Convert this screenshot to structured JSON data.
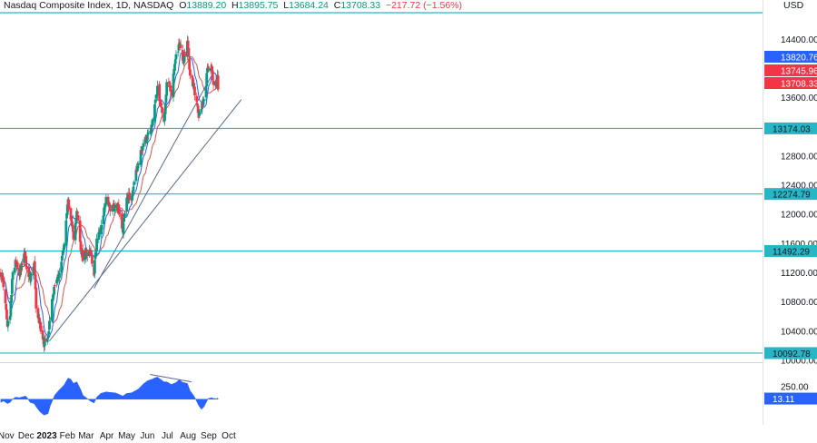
{
  "header": {
    "symbol": "Nasdaq Composite Index, 1D, NASDAQ",
    "open_label": "O",
    "open": "13889.20",
    "high_label": "H",
    "high": "13895.75",
    "low_label": "L",
    "low": "13684.24",
    "close_label": "C",
    "close": "13708.33",
    "change": "−217.72 (−1.56%)"
  },
  "currency": "USD",
  "colors": {
    "up": "#089981",
    "down": "#f23645",
    "ma_fast": "#2962ff",
    "ma_slow": "#e05252",
    "hline": "#26b6c6",
    "trendline": "#5d6a8c",
    "oscillator": "#2962ff"
  },
  "chart_data": {
    "type": "candlestick",
    "y_axis": {
      "ticks": [
        "14400.00",
        "13600.00",
        "12800.00",
        "12400.00",
        "12000.00",
        "11600.00",
        "11200.00",
        "10800.00",
        "10400.00",
        "10000.00"
      ],
      "ylim": [
        9980,
        14860
      ]
    },
    "x_axis": {
      "ticks": [
        "Nov",
        "Dec",
        "2023",
        "Feb",
        "Mar",
        "Apr",
        "May",
        "Jun",
        "Jul",
        "Aug",
        "Sep",
        "Oct"
      ]
    },
    "price_badges": [
      {
        "label": "13820.76",
        "value": 13820.76,
        "color": "#2962ff"
      },
      {
        "label": "13745.96",
        "value": 13745.96,
        "color": "#f23645"
      },
      {
        "label": "13708.33",
        "value": 13708.33,
        "color": "#f23645"
      }
    ],
    "horizontal_levels": [
      {
        "label": "14760.00",
        "value": 14760,
        "badge": false
      },
      {
        "label": "13174.03",
        "value": 13174.03,
        "badge": true
      },
      {
        "label": "12274.79",
        "value": 12274.79,
        "badge": true
      },
      {
        "label": "11492.29",
        "value": 11492.29,
        "badge": true
      },
      {
        "label": "10092.78",
        "value": 10092.78,
        "badge": true
      }
    ],
    "trendlines": [
      {
        "from": [
          "2023-01-05",
          10260
        ],
        "to": [
          "2023-10-20",
          13570
        ]
      },
      {
        "from": [
          "2023-03-13",
          10980
        ],
        "to": [
          "2023-09-06",
          13910
        ]
      }
    ],
    "close_path": [
      [
        "2022-10-24",
        11200
      ],
      [
        "2022-10-28",
        11050
      ],
      [
        "2022-11-03",
        10450
      ],
      [
        "2022-11-07",
        10600
      ],
      [
        "2022-11-10",
        11100
      ],
      [
        "2022-11-15",
        11380
      ],
      [
        "2022-11-21",
        11200
      ],
      [
        "2022-11-30",
        11460
      ],
      [
        "2022-12-02",
        11200
      ],
      [
        "2022-12-07",
        11100
      ],
      [
        "2022-12-13",
        11300
      ],
      [
        "2022-12-16",
        10740
      ],
      [
        "2022-12-22",
        10480
      ],
      [
        "2022-12-28",
        10230
      ],
      [
        "2023-01-03",
        10380
      ],
      [
        "2023-01-06",
        10580
      ],
      [
        "2023-01-13",
        11080
      ],
      [
        "2023-01-20",
        11160
      ],
      [
        "2023-01-27",
        11620
      ],
      [
        "2023-02-02",
        12200
      ],
      [
        "2023-02-06",
        11880
      ],
      [
        "2023-02-10",
        11700
      ],
      [
        "2023-02-15",
        12070
      ],
      [
        "2023-02-21",
        11500
      ],
      [
        "2023-02-24",
        11400
      ],
      [
        "2023-03-02",
        11460
      ],
      [
        "2023-03-07",
        11540
      ],
      [
        "2023-03-13",
        11200
      ],
      [
        "2023-03-17",
        11650
      ],
      [
        "2023-03-23",
        11800
      ],
      [
        "2023-03-31",
        12220
      ],
      [
        "2023-04-06",
        12080
      ],
      [
        "2023-04-14",
        12130
      ],
      [
        "2023-04-20",
        12060
      ],
      [
        "2023-04-25",
        11800
      ],
      [
        "2023-05-01",
        12210
      ],
      [
        "2023-05-08",
        12240
      ],
      [
        "2023-05-18",
        12680
      ],
      [
        "2023-05-26",
        12980
      ],
      [
        "2023-06-01",
        13080
      ],
      [
        "2023-06-08",
        13230
      ],
      [
        "2023-06-13",
        13600
      ],
      [
        "2023-06-16",
        13700
      ],
      [
        "2023-06-26",
        13300
      ],
      [
        "2023-06-30",
        13780
      ],
      [
        "2023-07-07",
        13670
      ],
      [
        "2023-07-13",
        14140
      ],
      [
        "2023-07-19",
        14350
      ],
      [
        "2023-07-24",
        14060
      ],
      [
        "2023-07-31",
        14350
      ],
      [
        "2023-08-04",
        13900
      ],
      [
        "2023-08-10",
        13740
      ],
      [
        "2023-08-17",
        13330
      ],
      [
        "2023-08-21",
        13480
      ],
      [
        "2023-08-25",
        13590
      ],
      [
        "2023-08-31",
        14030
      ],
      [
        "2023-09-05",
        14020
      ],
      [
        "2023-09-08",
        13760
      ],
      [
        "2023-09-13",
        13810
      ],
      [
        "2023-09-14",
        13925
      ],
      [
        "2023-09-15",
        13708
      ]
    ],
    "oscillator": {
      "label": "13.11",
      "ticks": [
        "250.00"
      ],
      "ylim": [
        -450,
        650
      ],
      "values": [
        [
          "2022-10-24",
          -60
        ],
        [
          "2022-10-28",
          -30
        ],
        [
          "2022-11-03",
          -80
        ],
        [
          "2022-11-07",
          -60
        ],
        [
          "2022-11-10",
          -10
        ],
        [
          "2022-11-15",
          40
        ],
        [
          "2022-11-21",
          30
        ],
        [
          "2022-11-30",
          60
        ],
        [
          "2022-12-02",
          40
        ],
        [
          "2022-12-07",
          -60
        ],
        [
          "2022-12-13",
          -80
        ],
        [
          "2022-12-16",
          -140
        ],
        [
          "2022-12-22",
          -240
        ],
        [
          "2022-12-28",
          -300
        ],
        [
          "2023-01-03",
          -270
        ],
        [
          "2023-01-06",
          -130
        ],
        [
          "2023-01-13",
          80
        ],
        [
          "2023-01-20",
          180
        ],
        [
          "2023-01-27",
          270
        ],
        [
          "2023-02-02",
          400
        ],
        [
          "2023-02-06",
          380
        ],
        [
          "2023-02-10",
          300
        ],
        [
          "2023-02-15",
          330
        ],
        [
          "2023-02-21",
          180
        ],
        [
          "2023-02-24",
          80
        ],
        [
          "2023-03-02",
          20
        ],
        [
          "2023-03-07",
          -30
        ],
        [
          "2023-03-13",
          -70
        ],
        [
          "2023-03-17",
          40
        ],
        [
          "2023-03-23",
          110
        ],
        [
          "2023-03-31",
          140
        ],
        [
          "2023-04-06",
          130
        ],
        [
          "2023-04-14",
          120
        ],
        [
          "2023-04-20",
          90
        ],
        [
          "2023-04-25",
          60
        ],
        [
          "2023-05-01",
          110
        ],
        [
          "2023-05-08",
          120
        ],
        [
          "2023-05-18",
          190
        ],
        [
          "2023-05-26",
          290
        ],
        [
          "2023-06-01",
          350
        ],
        [
          "2023-06-08",
          380
        ],
        [
          "2023-06-13",
          410
        ],
        [
          "2023-06-16",
          420
        ],
        [
          "2023-06-26",
          330
        ],
        [
          "2023-06-30",
          330
        ],
        [
          "2023-07-07",
          280
        ],
        [
          "2023-07-13",
          310
        ],
        [
          "2023-07-19",
          370
        ],
        [
          "2023-07-24",
          320
        ],
        [
          "2023-07-31",
          300
        ],
        [
          "2023-08-04",
          160
        ],
        [
          "2023-08-10",
          60
        ],
        [
          "2023-08-17",
          -120
        ],
        [
          "2023-08-21",
          -190
        ],
        [
          "2023-08-25",
          -140
        ],
        [
          "2023-08-31",
          10
        ],
        [
          "2023-09-05",
          30
        ],
        [
          "2023-09-08",
          15
        ],
        [
          "2023-09-13",
          10
        ],
        [
          "2023-09-14",
          25
        ],
        [
          "2023-09-15",
          13
        ]
      ],
      "divergence_line": {
        "from": [
          "2023-06-05",
          470
        ],
        "to": [
          "2023-08-06",
          330
        ]
      }
    }
  }
}
